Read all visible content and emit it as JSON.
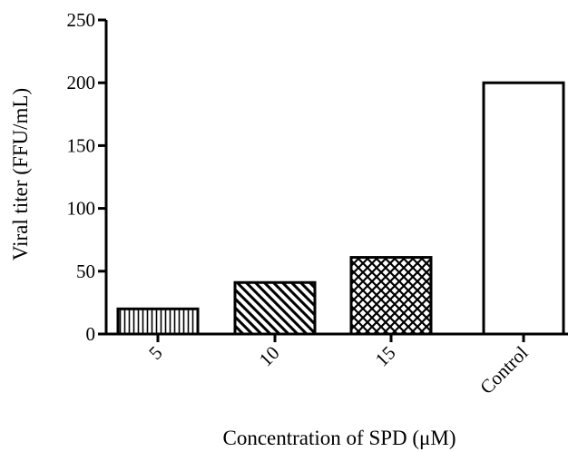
{
  "chart_data": {
    "type": "bar",
    "title": "",
    "xlabel": "Concentration of SPD (μM)",
    "ylabel": "Viral titer (FFU/mL)",
    "categories": [
      "5",
      "10",
      "15",
      "Control"
    ],
    "series": [
      {
        "values": [
          20,
          41,
          61,
          200
        ]
      }
    ],
    "patterns": [
      "vertical-lines",
      "diagonal-lines",
      "crosshatch",
      "none"
    ],
    "ylim": [
      0,
      250
    ],
    "yticks": [
      0,
      50,
      100,
      150,
      200,
      250
    ],
    "grid": false,
    "legend": "none"
  }
}
